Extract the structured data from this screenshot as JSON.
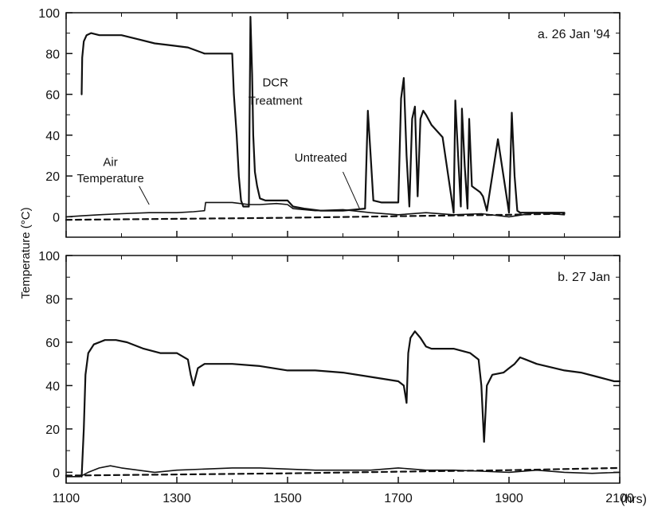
{
  "ylabel": "Temperature (°C)",
  "xunit_label": "(hrs)",
  "colors": {
    "line": "#111111",
    "axis": "#111111",
    "background": "#ffffff"
  },
  "chart_data": [
    {
      "type": "line",
      "panel_label": "a. 26 Jan '94",
      "ylim": [
        -10,
        100
      ],
      "xlim": [
        1100,
        2100
      ],
      "yticks": [
        0,
        20,
        40,
        60,
        80,
        100
      ],
      "xticks": [
        1100,
        1300,
        1500,
        1700,
        1900,
        2100
      ],
      "grid": false,
      "annotations": [
        {
          "text": "DCR",
          "x": 1478,
          "y": 64
        },
        {
          "text": "Treatment",
          "x": 1478,
          "y": 55
        },
        {
          "text": "Air",
          "x": 1180,
          "y": 25
        },
        {
          "text": "Temperature",
          "x": 1180,
          "y": 17
        },
        {
          "text": "Untreated",
          "x": 1560,
          "y": 27
        }
      ],
      "series": [
        {
          "style": "solid",
          "x": [
            1128,
            1129,
            1132,
            1137,
            1145,
            1160,
            1180,
            1200,
            1230,
            1260,
            1290,
            1320,
            1350,
            1370,
            1400,
            1403,
            1408,
            1412,
            1416,
            1420,
            1425,
            1430,
            1433,
            1436,
            1438,
            1441,
            1445,
            1450,
            1460,
            1500,
            1510,
            1530,
            1560,
            1600,
            1640,
            1645,
            1650,
            1655,
            1670,
            1700,
            1705,
            1710,
            1715,
            1720,
            1725,
            1730,
            1735,
            1740,
            1745,
            1750,
            1760,
            1780,
            1800,
            1803,
            1808,
            1813,
            1815,
            1820,
            1825,
            1828,
            1833,
            1838,
            1843,
            1848,
            1853,
            1860,
            1880,
            1900,
            1905,
            1910,
            1915,
            1920,
            1925,
            1930,
            1935,
            1950,
            2000
          ],
          "y": [
            60,
            78,
            86,
            89,
            90,
            89,
            89,
            89,
            87,
            85,
            84,
            83,
            80,
            80,
            80,
            60,
            40,
            20,
            8,
            5,
            5,
            5,
            98,
            70,
            40,
            22,
            15,
            9,
            8,
            8,
            5,
            4,
            3,
            3,
            4,
            52,
            30,
            8,
            7,
            7,
            58,
            68,
            30,
            5,
            48,
            54,
            10,
            48,
            52,
            50,
            45,
            39,
            2,
            57,
            30,
            5,
            53,
            25,
            4,
            48,
            15,
            14,
            13,
            12,
            10,
            3,
            38,
            2,
            51,
            20,
            3,
            2,
            2,
            2,
            2,
            2,
            2
          ]
        },
        {
          "style": "solid",
          "x": [
            1100,
            1130,
            1160,
            1200,
            1250,
            1300,
            1330,
            1350,
            1352,
            1360,
            1400,
            1430,
            1450,
            1480,
            1500,
            1510,
            1550,
            1600,
            1650,
            1700,
            1750,
            1800,
            1850,
            1900,
            1950,
            2000
          ],
          "y": [
            0,
            0.5,
            1,
            1.5,
            2,
            2,
            2.5,
            3,
            7,
            7,
            7,
            6,
            6,
            6.5,
            6,
            4,
            3,
            3.5,
            2,
            1,
            2,
            1,
            1.5,
            0,
            2,
            1
          ]
        },
        {
          "style": "dashed",
          "x": [
            1100,
            1300,
            1500,
            1700,
            1900,
            2000
          ],
          "y": [
            -1.5,
            -1,
            -0.5,
            0.3,
            1,
            1.5
          ]
        }
      ]
    },
    {
      "type": "line",
      "panel_label": "b. 27 Jan",
      "ylim": [
        -5,
        100
      ],
      "xlim": [
        1100,
        2100
      ],
      "yticks": [
        0,
        20,
        40,
        60,
        80,
        100
      ],
      "xticks": [
        1100,
        1300,
        1500,
        1700,
        1900,
        2100
      ],
      "xticklabels": [
        "1100",
        "1300",
        "1500",
        "1700",
        "1900",
        "2100"
      ],
      "grid": false,
      "annotations": [],
      "series": [
        {
          "style": "solid",
          "x": [
            1128,
            1132,
            1135,
            1140,
            1150,
            1170,
            1190,
            1210,
            1240,
            1270,
            1300,
            1320,
            1325,
            1330,
            1338,
            1350,
            1400,
            1450,
            1500,
            1550,
            1600,
            1650,
            1700,
            1710,
            1715,
            1718,
            1722,
            1730,
            1740,
            1750,
            1760,
            1800,
            1830,
            1845,
            1850,
            1855,
            1860,
            1870,
            1890,
            1900,
            1910,
            1920,
            1930,
            1950,
            2000,
            2030,
            2060,
            2090,
            2100
          ],
          "y": [
            -2,
            20,
            45,
            55,
            59,
            61,
            61,
            60,
            57,
            55,
            55,
            52,
            45,
            40,
            48,
            50,
            50,
            49,
            47,
            47,
            46,
            44,
            42,
            40,
            32,
            55,
            62,
            65,
            62,
            58,
            57,
            57,
            55,
            52,
            40,
            14,
            40,
            45,
            46,
            48,
            50,
            53,
            52,
            50,
            47,
            46,
            44,
            42,
            42
          ]
        },
        {
          "style": "solid",
          "x": [
            1100,
            1125,
            1140,
            1160,
            1180,
            1200,
            1230,
            1260,
            1300,
            1350,
            1400,
            1450,
            1500,
            1550,
            1600,
            1650,
            1700,
            1750,
            1800,
            1850,
            1900,
            1950,
            2000,
            2050,
            2100
          ],
          "y": [
            -2,
            -2,
            0,
            2,
            3,
            2,
            1,
            0,
            1,
            1.5,
            2,
            2,
            1.5,
            1,
            1,
            1,
            2,
            1,
            1,
            0.5,
            0,
            1,
            0,
            -0.5,
            0
          ]
        },
        {
          "style": "dashed",
          "x": [
            1100,
            1300,
            1500,
            1700,
            1900,
            2100
          ],
          "y": [
            -1.5,
            -1,
            -0.5,
            0.3,
            1,
            2
          ]
        }
      ]
    }
  ]
}
